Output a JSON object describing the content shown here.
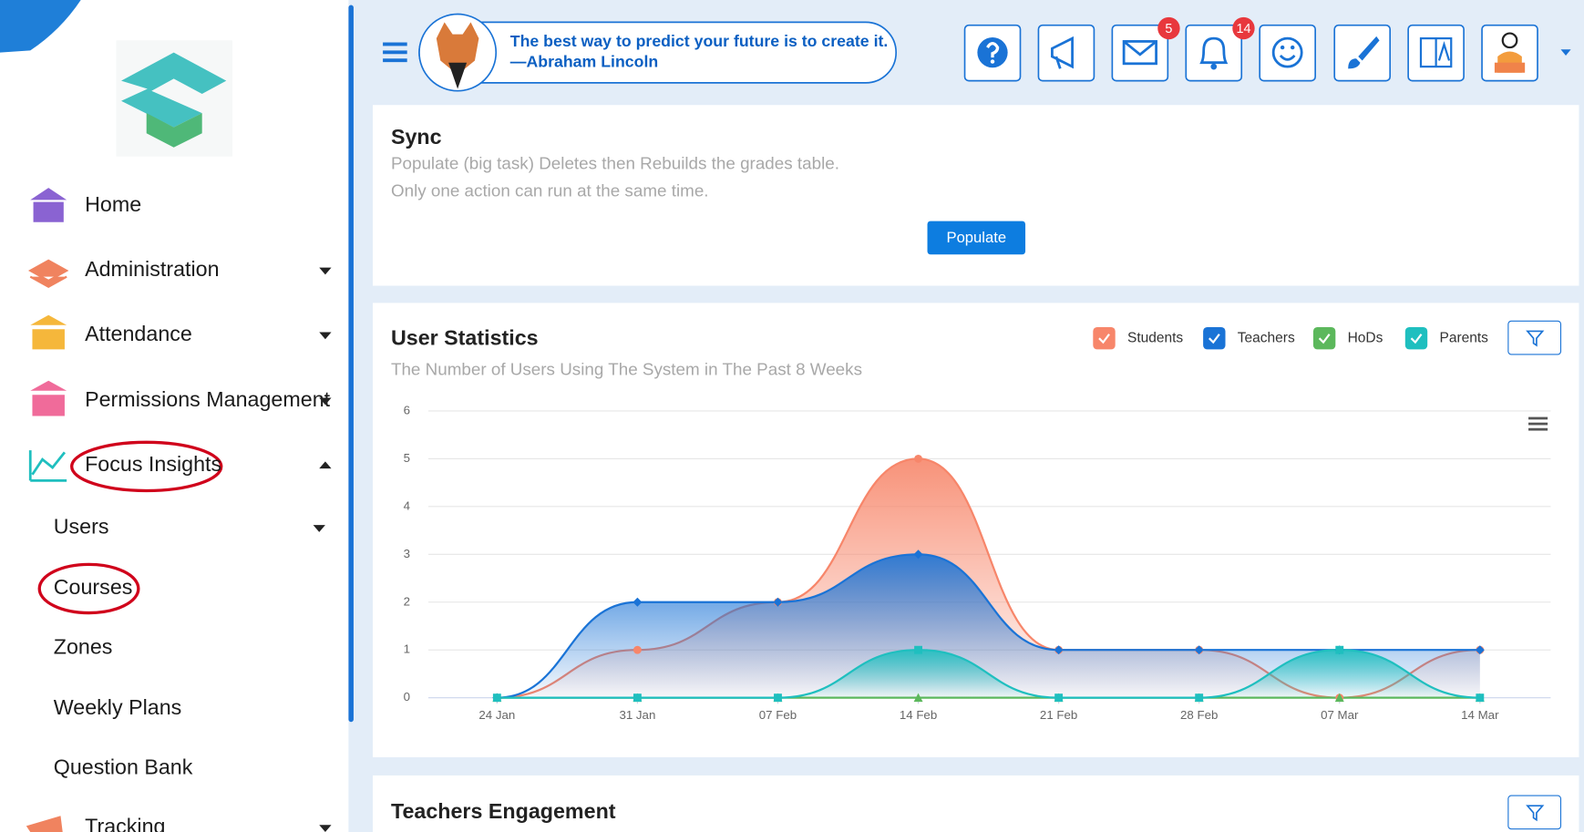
{
  "sidebar": {
    "menu": [
      "Home",
      "Administration",
      "Attendance",
      "Permissions Management",
      "Focus Insights"
    ],
    "submenu": [
      "Users",
      "Courses",
      "Zones",
      "Weekly Plans",
      "Question Bank"
    ],
    "next_item": "Tracking"
  },
  "header": {
    "quote": "The best way to predict your future is to create it.",
    "author": "—Abraham Lincoln",
    "messages_badge": 5,
    "notifications_badge": 14
  },
  "sync": {
    "title": "Sync",
    "description": [
      "Populate (big task) Deletes then Rebuilds the grades table.",
      "Only one action can run at the same time."
    ],
    "button": "Populate"
  },
  "chart_data": {
    "type": "area",
    "title": "User Statistics",
    "subtitle": "The Number of Users Using The System in The Past 8 Weeks",
    "categories": [
      "24 Jan",
      "31 Jan",
      "07 Feb",
      "14 Feb",
      "21 Feb",
      "28 Feb",
      "07 Mar",
      "14 Mar"
    ],
    "series": [
      {
        "name": "Students",
        "color": "#f7866a",
        "values": [
          0,
          1,
          2,
          5,
          1,
          1,
          0,
          1
        ]
      },
      {
        "name": "Teachers",
        "color": "#1a73d6",
        "values": [
          0,
          2,
          2,
          3,
          1,
          1,
          1,
          1
        ]
      },
      {
        "name": "HoDs",
        "color": "#5cb85c",
        "values": [
          0,
          0,
          0,
          0,
          0,
          0,
          0,
          0
        ]
      },
      {
        "name": "Parents",
        "color": "#1fbfbf",
        "values": [
          0,
          0,
          0,
          1,
          0,
          0,
          1,
          0
        ]
      }
    ],
    "ylim": [
      0,
      6
    ],
    "yticks": [
      0,
      1,
      2,
      3,
      4,
      5,
      6
    ],
    "grid": true
  },
  "teachers_engagement": {
    "title": "Teachers Engagement"
  }
}
